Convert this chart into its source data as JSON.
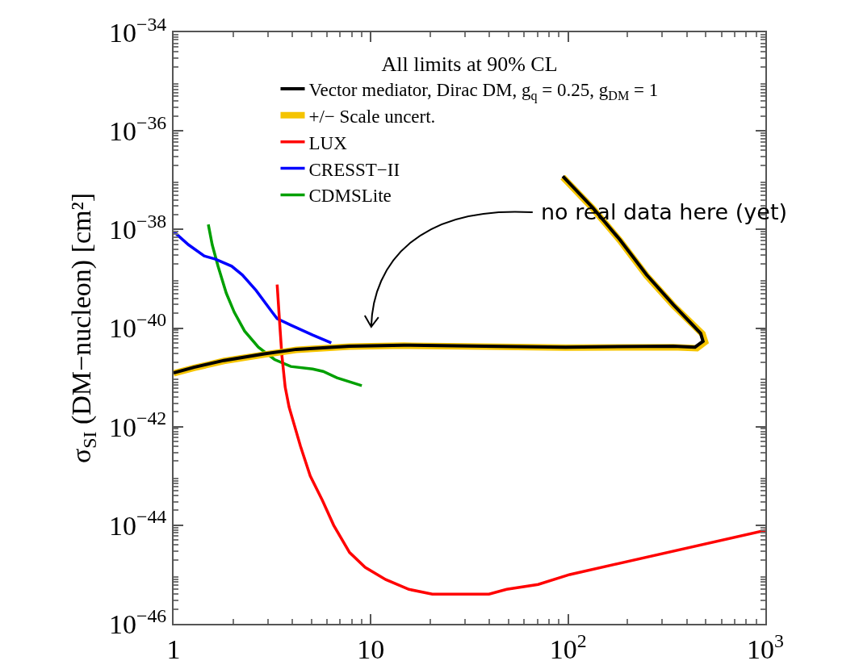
{
  "chart_data": {
    "type": "line",
    "ylabel": "σ$_{SI}$ (DM−nucleon) [cm²]",
    "legend_title": "All limits at 90% CL",
    "log": "xy",
    "grid": false,
    "legend": "top",
    "marker": "none",
    "line_style": "solid",
    "xlim": [
      1,
      1000
    ],
    "xticks": [
      1,
      10,
      {
        "value": 100,
        "label": "10$^{2}$"
      },
      {
        "value": 1000,
        "label": "10$^{3}$"
      }
    ],
    "ylim": [
      1e-46,
      1e-34
    ],
    "yticks": [
      {
        "value": 1e-46,
        "label": "10$^{−46}$"
      },
      {
        "value": 1e-44,
        "label": "10$^{−44}$"
      },
      {
        "value": 1e-42,
        "label": "10$^{−42}$"
      },
      {
        "value": 1e-40,
        "label": "10$^{−40}$"
      },
      {
        "value": 1e-38,
        "label": "10$^{−38}$"
      },
      {
        "value": 1e-36,
        "label": "10$^{−36}$"
      },
      {
        "value": 1e-34,
        "label": "10$^{−34}$"
      }
    ],
    "annotations": [
      "no real data here (yet)"
    ],
    "series": [
      {
        "name": "Vector mediator, Dirac DM, g$_{q}$ = 0.25, g$_{DM}$ = 1",
        "color": "#000000",
        "x": [
          1,
          1.27,
          1.8,
          2.88,
          4.2,
          7.8,
          14.7,
          37.8,
          97,
          341,
          440,
          483,
          470,
          341,
          250,
          183,
          133,
          94
        ],
        "values": [
          1.23e-41,
          1.6e-41,
          2.2e-41,
          3e-41,
          3.7e-41,
          4.3e-41,
          4.5e-41,
          4.3e-41,
          4.1e-41,
          4.3e-41,
          4.1e-41,
          5.4e-41,
          7.8e-41,
          3e-40,
          1.2e-39,
          6.2e-39,
          2.8e-38,
          1.2e-37
        ]
      },
      {
        "name": "+/− Scale uncert.",
        "color": "#f5c400",
        "x": [
          1,
          1.27,
          1.8,
          2.88,
          4.2,
          7.8,
          14.7,
          37.8,
          97,
          341,
          450,
          495,
          480,
          341,
          250,
          183,
          133,
          94
        ],
        "values": [
          1.2e-41,
          1.55e-41,
          2.15e-41,
          2.9e-41,
          3.6e-41,
          4.2e-41,
          4.4e-41,
          4.2e-41,
          4e-41,
          4.1e-41,
          3.9e-41,
          5.2e-41,
          7.6e-41,
          2.9e-40,
          1.15e-39,
          6e-39,
          2.7e-38,
          1.15e-37
        ]
      },
      {
        "name": "LUX",
        "color": "#ff0000",
        "x": [
          3.35,
          3.45,
          3.54,
          3.68,
          3.85,
          4.4,
          4.93,
          5.68,
          6.48,
          7.8,
          9.36,
          11.9,
          15.6,
          20.5,
          32.2,
          39.7,
          48.8,
          70.5,
          102,
          1000
        ],
        "values": [
          7.6e-40,
          1.26e-40,
          2.8e-41,
          6.3e-42,
          2.5e-42,
          4e-43,
          1e-43,
          3.2e-44,
          1e-44,
          2.8e-45,
          1.4e-45,
          7.9e-46,
          5e-46,
          4e-46,
          4e-46,
          4e-46,
          5e-46,
          6.3e-46,
          1e-45,
          7.9e-45
        ]
      },
      {
        "name": "CRESST−II",
        "color": "#0000ff",
        "x": [
          1,
          1.19,
          1.43,
          1.63,
          1.97,
          2.23,
          2.62,
          3.16,
          3.35,
          3.93,
          5.07,
          6.3
        ],
        "values": [
          9.1e-39,
          4.9e-39,
          2.9e-39,
          2.5e-39,
          1.8e-39,
          1.2e-39,
          5.8e-40,
          2.1e-40,
          1.55e-40,
          1.15e-40,
          7.2e-41,
          5e-41
        ]
      },
      {
        "name": "CDMSLite",
        "color": "#00a000",
        "x": [
          1.5,
          1.57,
          1.68,
          1.85,
          2.03,
          2.29,
          2.69,
          3.25,
          3.93,
          5.07,
          5.73,
          6.73,
          9.0
        ],
        "values": [
          1.26e-38,
          4.9e-39,
          1.8e-39,
          5.1e-40,
          2.1e-40,
          8.7e-41,
          4.1e-41,
          2.3e-41,
          1.66e-41,
          1.48e-41,
          1.32e-41,
          9.8e-42,
          6.8e-42
        ]
      }
    ]
  }
}
